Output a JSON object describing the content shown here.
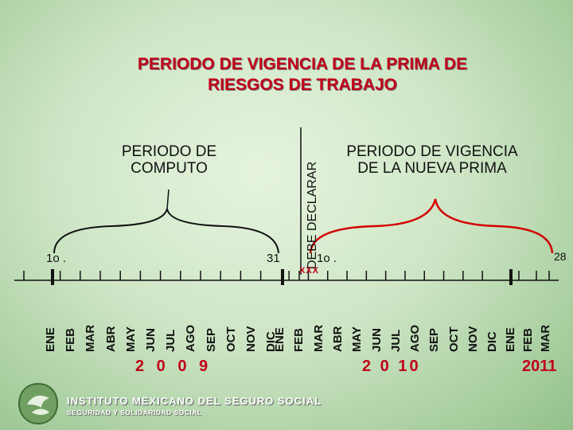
{
  "title": {
    "line1": "PERIODO DE VIGENCIA DE LA PRIMA DE",
    "line2": "RIESGOS DE TRABAJO"
  },
  "computo": {
    "caption_line1": "PERIODO DE",
    "caption_line2": "COMPUTO",
    "start_label": "1o .",
    "end_label": "31"
  },
  "vigencia": {
    "caption_line1": "PERIODO DE VIGENCIA",
    "caption_line2": "DE LA NUEVA PRIMA",
    "start_label": "1o .",
    "end_label": "28"
  },
  "declarar_label": "DEBE DECLARAR",
  "marker_label": "XXX",
  "timeline": {
    "months_2009": [
      "ENE",
      "FEB",
      "MAR",
      "ABR",
      "MAY",
      "JUN",
      "JUL",
      "AGO",
      "SEP",
      "OCT",
      "NOV",
      "DIC"
    ],
    "months_2010": [
      "ENE",
      "FEB",
      "MAR",
      "ABR",
      "MAY",
      "JUN",
      "JUL",
      "AGO",
      "SEP",
      "OCT",
      "NOV",
      "DIC"
    ],
    "months_2011": [
      "ENE",
      "FEB",
      "MAR"
    ],
    "year_2009": "2 0 0 9",
    "year_2010": "2 0 10",
    "year_2011": "2011"
  },
  "colors": {
    "title": "#c0001a",
    "computo_bracket": "#111111",
    "vigencia_bracket": "#d40000",
    "year": "#c0001a"
  },
  "footer": {
    "institution": "INSTITUTO MEXICANO DEL SEGURO SOCIAL",
    "motto": "SEGURIDAD Y SOLIDARIDAD SOCIAL",
    "logo_icon": "imss-eagle-logo-icon"
  }
}
